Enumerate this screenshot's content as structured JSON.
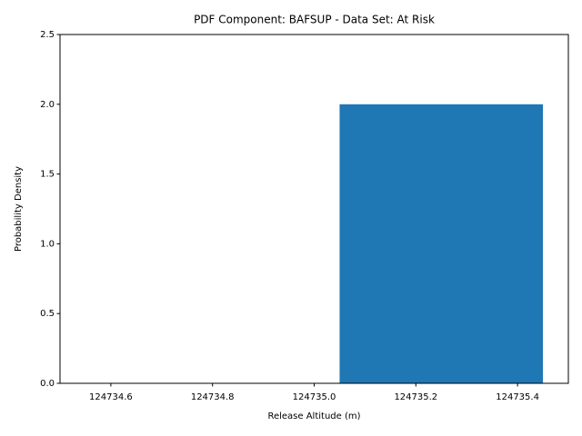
{
  "chart_data": {
    "type": "histogram",
    "title": "PDF Component: BAFSUP - Data Set: At Risk",
    "x_label": "Release Altitude (m)",
    "y_label": "Probability Density",
    "bins": [
      124735.05,
      124735.45
    ],
    "counts": [
      2.0
    ],
    "color": "#1f77b4",
    "xlim": [
      124734.5,
      124735.5
    ],
    "xticks": [
      124734.6,
      124734.8,
      {
        "value": 124735.0,
        "label": "124735.0"
      },
      124735.2,
      124735.4
    ],
    "ylim": [
      0,
      2.5
    ],
    "yticks": [
      {
        "value": 0,
        "label": "0.0"
      },
      0.5,
      {
        "value": 1,
        "label": "1.0"
      },
      1.5,
      {
        "value": 2,
        "label": "2.0"
      },
      2.5
    ],
    "grid": false
  }
}
